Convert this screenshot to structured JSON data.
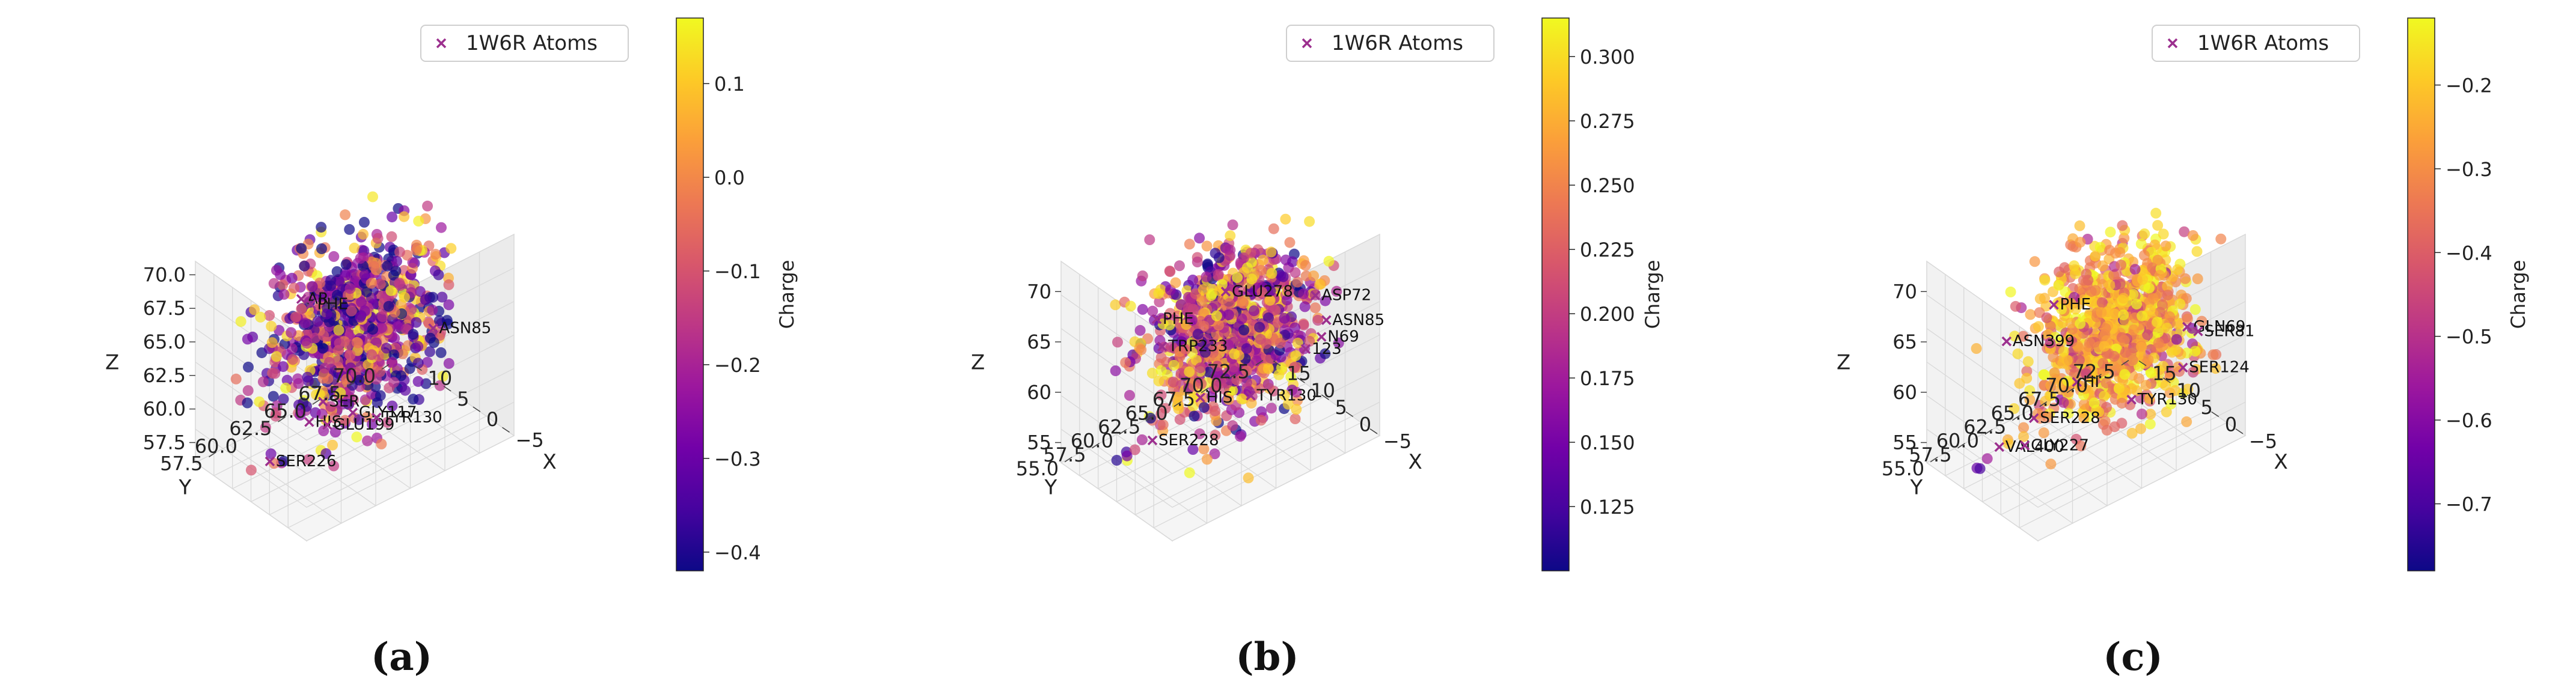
{
  "figure": {
    "legend_entry": "1W6R Atoms",
    "colorbar_label": "Charge"
  },
  "colors": {
    "plasma": [
      "#0d0887",
      "#46039f",
      "#7201a8",
      "#9c179e",
      "#bd3786",
      "#d8576b",
      "#ed7953",
      "#fb9f3a",
      "#fdca26",
      "#f0f921"
    ],
    "marker": "#9c2f8e",
    "pane": "#f2f2f2",
    "grid": "#d9d9d9"
  },
  "chart_data": [
    {
      "type": "scatter",
      "panel_label": "(a)",
      "xlabel": "X",
      "ylabel": "Y",
      "zlabel": "Z",
      "x_ticks": [
        "10",
        "5",
        "0",
        "−5"
      ],
      "x_tick_values": [
        10,
        5,
        0,
        -5
      ],
      "y_ticks": [
        "57.5",
        "60.0",
        "62.5",
        "65.0",
        "67.5",
        "70.0"
      ],
      "z_ticks": [
        "57.5",
        "60.0",
        "62.5",
        "65.0",
        "67.5",
        "70.0"
      ],
      "x_range": [
        -7,
        12
      ],
      "y_range": [
        56,
        71
      ],
      "z_range": [
        56,
        71
      ],
      "colorbar": {
        "label": "Charge",
        "range": [
          -0.42,
          0.17
        ],
        "ticks": [
          "0.1",
          "0.0",
          "−0.1",
          "−0.2",
          "−0.3",
          "−0.4"
        ],
        "tick_values": [
          0.1,
          0.0,
          -0.1,
          -0.2,
          -0.3,
          -0.4
        ]
      },
      "cloud": {
        "center": [
          3,
          64,
          65
        ],
        "spread": [
          3.5,
          2.5,
          3.5
        ],
        "count": 900,
        "charge_mean": -0.25,
        "charge_sd": 0.18
      },
      "stray_points": [
        {
          "x": 2,
          "y": 58,
          "z": 58
        },
        {
          "x": 4,
          "y": 59,
          "z": 57
        },
        {
          "x": 6,
          "y": 57.5,
          "z": 56.5
        },
        {
          "x": 0,
          "y": 60,
          "z": 58.5
        },
        {
          "x": 5,
          "y": 58.5,
          "z": 57.5
        }
      ],
      "stray_charge": [
        -0.2,
        -0.42,
        -0.1,
        0.15,
        -0.3
      ],
      "labeled_atoms": [
        {
          "label": "AR",
          "x": 1,
          "y": 59,
          "z": 70
        },
        {
          "label": "PHE",
          "x": 0.5,
          "y": 59.5,
          "z": 69.5
        },
        {
          "label": "ASN85",
          "x": -5,
          "y": 66,
          "z": 66
        },
        {
          "label": "SER",
          "x": 2,
          "y": 61,
          "z": 61
        },
        {
          "label": "HIS",
          "x": 2,
          "y": 60,
          "z": 60
        },
        {
          "label": "SER226",
          "x": 4,
          "y": 58,
          "z": 57.5
        },
        {
          "label": "GLU199",
          "x": 6,
          "y": 63,
          "z": 57
        },
        {
          "label": "GLY117",
          "x": 4,
          "y": 64,
          "z": 58
        },
        {
          "label": "TYR130",
          "x": 3.5,
          "y": 65.5,
          "z": 57
        }
      ],
      "legend": [
        "1W6R Atoms"
      ]
    },
    {
      "type": "scatter",
      "panel_label": "(b)",
      "xlabel": "X",
      "ylabel": "Y",
      "zlabel": "Z",
      "x_ticks": [
        "15",
        "10",
        "5",
        "0",
        "−5"
      ],
      "x_tick_values": [
        15,
        10,
        5,
        0,
        -5
      ],
      "y_ticks": [
        "55.0",
        "57.5",
        "60.0",
        "62.5",
        "65.0",
        "67.5",
        "70.0",
        "72.5"
      ],
      "z_ticks": [
        "55",
        "60",
        "65",
        "70"
      ],
      "x_range": [
        -7,
        16
      ],
      "y_range": [
        54,
        73
      ],
      "z_range": [
        53,
        73
      ],
      "colorbar": {
        "label": "Charge",
        "range": [
          0.1,
          0.315
        ],
        "ticks": [
          "0.300",
          "0.275",
          "0.250",
          "0.225",
          "0.200",
          "0.175",
          "0.150",
          "0.125"
        ],
        "tick_values": [
          0.3,
          0.275,
          0.25,
          0.225,
          0.2,
          0.175,
          0.15,
          0.125
        ]
      },
      "cloud": {
        "center": [
          3,
          64,
          65
        ],
        "spread": [
          4,
          3,
          4.5
        ],
        "count": 1000,
        "charge_mean": 0.2,
        "charge_sd": 0.06
      },
      "stray_points": [
        {
          "x": 6,
          "y": 57,
          "z": 57
        },
        {
          "x": 4,
          "y": 58,
          "z": 58
        },
        {
          "x": 7,
          "y": 56,
          "z": 56
        },
        {
          "x": 5,
          "y": 57.5,
          "z": 59
        },
        {
          "x": 8,
          "y": 56.5,
          "z": 55
        },
        {
          "x": 3,
          "y": 59,
          "z": 60
        },
        {
          "x": 9,
          "y": 56,
          "z": 54.5
        },
        {
          "x": 7.5,
          "y": 57,
          "z": 55.5
        }
      ],
      "stray_charge": [
        0.18,
        0.27,
        0.12,
        0.23,
        0.15,
        0.29,
        0.11,
        0.21
      ],
      "labeled_atoms": [
        {
          "label": "GLU278",
          "x": 0,
          "y": 62,
          "z": 71
        },
        {
          "label": "PHE",
          "x": 3,
          "y": 57,
          "z": 70
        },
        {
          "label": "ASP72",
          "x": -5,
          "y": 68,
          "z": 69
        },
        {
          "label": "TRP233",
          "x": 3,
          "y": 57.5,
          "z": 67
        },
        {
          "label": "ASN85",
          "x": -5,
          "y": 69,
          "z": 66
        },
        {
          "label": "N69",
          "x": -4,
          "y": 69,
          "z": 64
        },
        {
          "label": "123",
          "x": -3,
          "y": 68,
          "z": 63
        },
        {
          "label": "HIS",
          "x": 3,
          "y": 61,
          "z": 60
        },
        {
          "label": "SER228",
          "x": 5,
          "y": 57.5,
          "z": 57
        },
        {
          "label": "TYR130",
          "x": 5,
          "y": 66.5,
          "z": 56.5
        }
      ],
      "legend": [
        "1W6R Atoms"
      ]
    },
    {
      "type": "scatter",
      "panel_label": "(c)",
      "xlabel": "X",
      "ylabel": "Y",
      "zlabel": "Z",
      "x_ticks": [
        "15",
        "10",
        "5",
        "0",
        "−5"
      ],
      "x_tick_values": [
        15,
        10,
        5,
        0,
        -5
      ],
      "y_ticks": [
        "55.0",
        "57.5",
        "60.0",
        "62.5",
        "65.0",
        "67.5",
        "70.0",
        "72.5"
      ],
      "z_ticks": [
        "55",
        "60",
        "65",
        "70"
      ],
      "x_range": [
        -7,
        16
      ],
      "y_range": [
        54,
        73
      ],
      "z_range": [
        53,
        73
      ],
      "colorbar": {
        "label": "Charge",
        "range": [
          -0.78,
          -0.12
        ],
        "ticks": [
          "−0.2",
          "−0.3",
          "−0.4",
          "−0.5",
          "−0.6",
          "−0.7"
        ],
        "tick_values": [
          -0.2,
          -0.3,
          -0.4,
          -0.5,
          -0.6,
          -0.7
        ]
      },
      "cloud": {
        "center": [
          2,
          65,
          65
        ],
        "spread": [
          4,
          3,
          4.5
        ],
        "count": 1000,
        "charge_mean": -0.28,
        "charge_sd": 0.12
      },
      "stray_points": [
        {
          "x": 6,
          "y": 57,
          "z": 57
        },
        {
          "x": 8,
          "y": 56,
          "z": 55
        },
        {
          "x": 5,
          "y": 58,
          "z": 58
        },
        {
          "x": 9,
          "y": 55.5,
          "z": 54
        },
        {
          "x": 7,
          "y": 57.5,
          "z": 56
        },
        {
          "x": 4,
          "y": 59,
          "z": 60
        },
        {
          "x": 9.5,
          "y": 56,
          "z": 53.5
        }
      ],
      "stray_charge": [
        -0.25,
        -0.55,
        -0.3,
        -0.65,
        -0.2,
        -0.45,
        -0.7
      ],
      "labeled_atoms": [
        {
          "label": "PHE",
          "x": 1,
          "y": 59,
          "z": 71
        },
        {
          "label": "ASN399",
          "x": 4,
          "y": 56,
          "z": 68
        },
        {
          "label": "GLN69",
          "x": -4,
          "y": 69,
          "z": 65
        },
        {
          "label": "SER81",
          "x": -4,
          "y": 70,
          "z": 64
        },
        {
          "label": "SER124",
          "x": -2,
          "y": 69.5,
          "z": 60
        },
        {
          "label": "HI",
          "x": 3,
          "y": 62,
          "z": 61
        },
        {
          "label": "SER228",
          "x": 4,
          "y": 58.5,
          "z": 59
        },
        {
          "label": "VAL400",
          "x": 5.5,
          "y": 56,
          "z": 57
        },
        {
          "label": "GLY227",
          "x": 7,
          "y": 59,
          "z": 55
        },
        {
          "label": "TYR130",
          "x": 3,
          "y": 67,
          "z": 56.5
        }
      ],
      "legend": [
        "1W6R Atoms"
      ]
    }
  ]
}
